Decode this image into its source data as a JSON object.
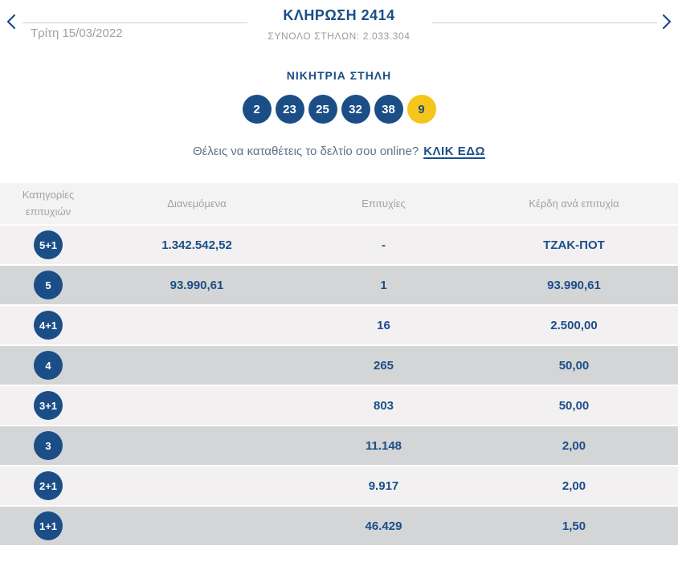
{
  "header": {
    "title": "ΚΛΗΡΩΣΗ 2414",
    "subtitle": "ΣΥΝΟΛΟ ΣΤΗΛΩΝ: 2.033.304",
    "date": "Τρίτη 15/03/2022"
  },
  "icons": {
    "prev": "chevron-left",
    "next": "chevron-right"
  },
  "winning": {
    "heading": "ΝΙΚΗΤΡΙΑ ΣΤΗΛΗ",
    "numbers": [
      "2",
      "23",
      "25",
      "32",
      "38"
    ],
    "joker": "9"
  },
  "online": {
    "text": "Θέλεις να καταθέτεις το δελτίο σου online?",
    "link": "ΚΛΙΚ ΕΔΩ"
  },
  "table": {
    "headers": [
      "Κατηγορίες επιτυχιών",
      "Διανεμόμενα",
      "Επιτυχίες",
      "Κέρδη ανά επιτυχία"
    ],
    "rows": [
      {
        "category": "5+1",
        "distributed": "1.342.542,52",
        "winners": "-",
        "prize": "ΤΖΑΚ-ΠΟΤ"
      },
      {
        "category": "5",
        "distributed": "93.990,61",
        "winners": "1",
        "prize": "93.990,61"
      },
      {
        "category": "4+1",
        "distributed": "",
        "winners": "16",
        "prize": "2.500,00"
      },
      {
        "category": "4",
        "distributed": "",
        "winners": "265",
        "prize": "50,00"
      },
      {
        "category": "3+1",
        "distributed": "",
        "winners": "803",
        "prize": "50,00"
      },
      {
        "category": "3",
        "distributed": "",
        "winners": "11.148",
        "prize": "2,00"
      },
      {
        "category": "2+1",
        "distributed": "",
        "winners": "9.917",
        "prize": "2,00"
      },
      {
        "category": "1+1",
        "distributed": "",
        "winners": "46.429",
        "prize": "1,50"
      }
    ]
  },
  "colors": {
    "primary_blue": "#1b4e87",
    "joker_yellow": "#f5c51a",
    "gray_text": "#9b9b9b",
    "row_light": "#f2f0f1",
    "row_dark": "#d4d5d6",
    "header_bg": "#f4f3f4"
  }
}
